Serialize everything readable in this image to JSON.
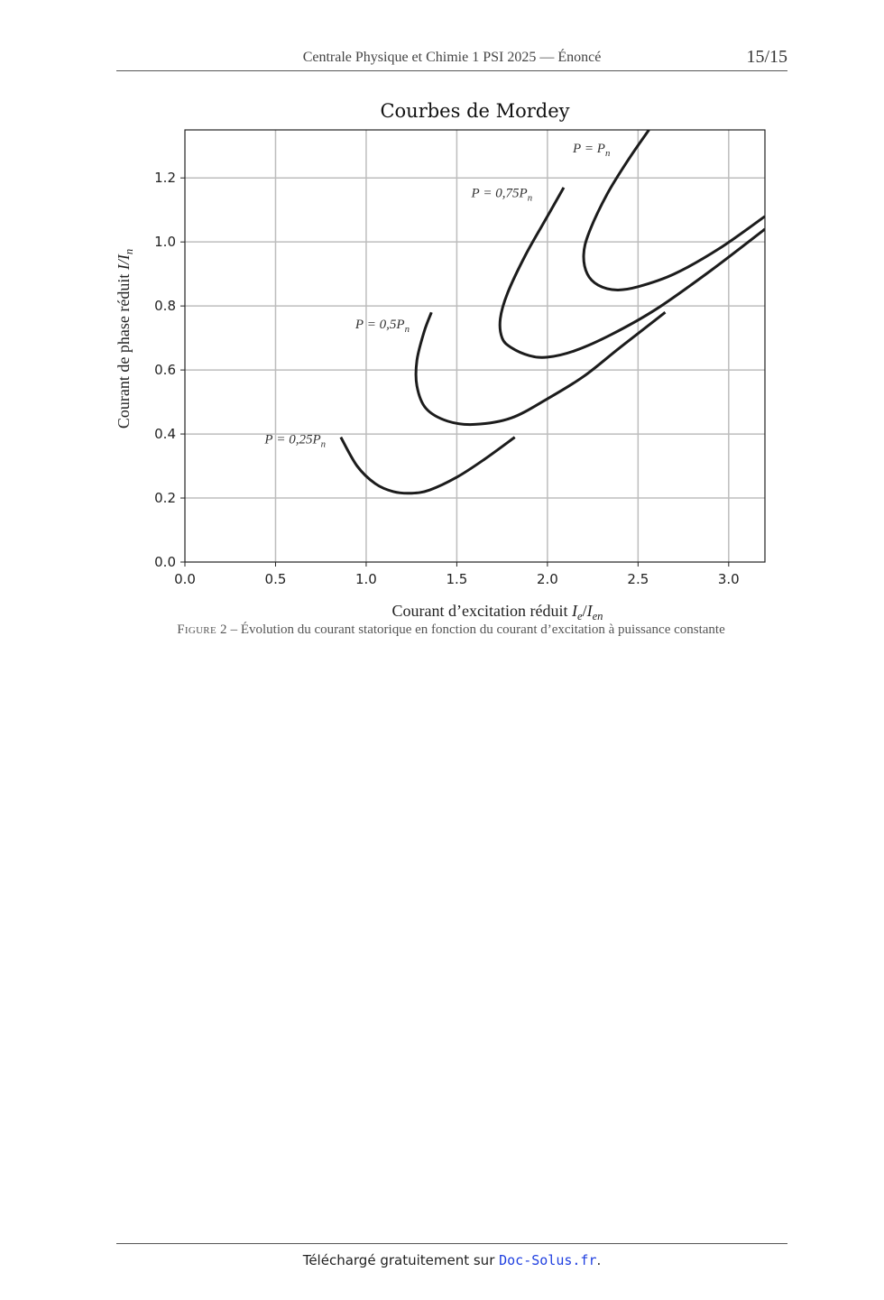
{
  "header": {
    "title": "Centrale Physique et Chimie 1 PSI 2025 — Énoncé",
    "page": "15/15"
  },
  "figure": {
    "caption_label": "Figure 2",
    "caption_sep": " – ",
    "caption_text": "Évolution du courant statorique en fonction du courant d’excitation à puissance constante"
  },
  "chart_data": {
    "type": "line",
    "title": "Courbes de Mordey",
    "xlabel": "Courant d’excitation réduit I_e/I_en",
    "ylabel": "Courant de phase réduit  I/I_n",
    "xlim": [
      0.0,
      3.2
    ],
    "ylim": [
      0.0,
      1.35
    ],
    "xticks": [
      "0.0",
      "0.5",
      "1.0",
      "1.5",
      "2.0",
      "2.5",
      "3.0"
    ],
    "yticks": [
      "0.0",
      "0.2",
      "0.4",
      "0.6",
      "0.8",
      "1.0",
      "1.2"
    ],
    "grid": true,
    "series": [
      {
        "name": "P = 0,25P_n",
        "x": [
          0.86,
          0.95,
          1.05,
          1.15,
          1.25,
          1.35,
          1.5,
          1.65,
          1.82
        ],
        "y": [
          0.39,
          0.3,
          0.245,
          0.22,
          0.215,
          0.225,
          0.265,
          0.32,
          0.39
        ]
      },
      {
        "name": "P = 0,5P_n",
        "x": [
          1.36,
          1.32,
          1.28,
          1.28,
          1.33,
          1.45,
          1.6,
          1.8,
          2.0,
          2.2,
          2.4,
          2.65
        ],
        "y": [
          0.78,
          0.72,
          0.63,
          0.55,
          0.48,
          0.44,
          0.43,
          0.45,
          0.51,
          0.58,
          0.67,
          0.78
        ]
      },
      {
        "name": "P = 0,75P_n",
        "x": [
          2.09,
          2.0,
          1.88,
          1.78,
          1.74,
          1.75,
          1.8,
          1.9,
          2.0,
          2.15,
          2.35,
          2.6,
          2.9,
          3.2
        ],
        "y": [
          1.17,
          1.08,
          0.96,
          0.84,
          0.76,
          0.7,
          0.67,
          0.645,
          0.64,
          0.66,
          0.71,
          0.79,
          0.91,
          1.04
        ]
      },
      {
        "name": "P = P_n",
        "x": [
          2.56,
          2.45,
          2.33,
          2.23,
          2.2,
          2.22,
          2.28,
          2.38,
          2.5,
          2.7,
          2.95,
          3.2
        ],
        "y": [
          1.35,
          1.26,
          1.15,
          1.03,
          0.96,
          0.9,
          0.865,
          0.85,
          0.86,
          0.9,
          0.98,
          1.08
        ]
      }
    ],
    "annotations": [
      {
        "text": "P = 0,25P_n",
        "x": 0.44,
        "y": 0.37
      },
      {
        "text": "P = 0,5P_n",
        "x": 0.94,
        "y": 0.73
      },
      {
        "text": "P = 0,75P_n",
        "x": 1.58,
        "y": 1.14
      },
      {
        "text": "P = P_n",
        "x": 2.14,
        "y": 1.28
      }
    ]
  },
  "footer": {
    "text": "Téléchargé gratuitement sur ",
    "link": "Doc-Solus.fr",
    "end": "."
  }
}
